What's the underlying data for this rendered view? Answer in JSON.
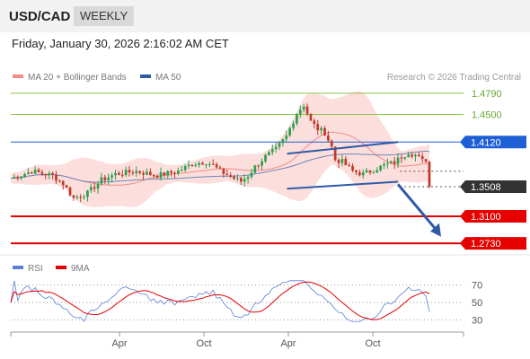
{
  "header": {
    "symbol": "USD/CAD",
    "timeframe": "WEEKLY",
    "datetime": "Friday, January 30, 2026 2:16:02 AM CET"
  },
  "legend": {
    "main": [
      {
        "name": "MA 20 + Bollinger Bands",
        "color": "#f28b82"
      },
      {
        "name": "MA 50",
        "color": "#2f5c9e"
      }
    ],
    "rsi": [
      {
        "name": "RSI",
        "color": "#5b7fd6"
      },
      {
        "name": "9MA",
        "color": "#e60000"
      }
    ],
    "credit": "Research © 2026 Trading Central"
  },
  "chart_data": {
    "type": "candlestick",
    "price_range": [
      1.262,
      1.49
    ],
    "levels": [
      {
        "label": "1.4790",
        "value": 1.479,
        "color": "#8bc34a",
        "style": "resistance"
      },
      {
        "label": "1.4500",
        "value": 1.45,
        "color": "#8bc34a",
        "style": "resistance"
      },
      {
        "label": "1.4120",
        "value": 1.412,
        "color": "#1f5fd6",
        "style": "pivot"
      },
      {
        "label": "1.3508",
        "value": 1.3508,
        "color": "#333333",
        "style": "last"
      },
      {
        "label": "1.3100",
        "value": 1.31,
        "color": "#e60000",
        "style": "support"
      },
      {
        "label": "1.2730",
        "value": 1.273,
        "color": "#e60000",
        "style": "support"
      }
    ],
    "x_ticks": [
      "Apr",
      "Oct",
      "Apr",
      "Oct"
    ],
    "rsi_ticks": [
      70,
      50,
      30
    ],
    "rsi_range": [
      20,
      80
    ],
    "channel": {
      "upper": [
        [
          0.66,
          1.396
        ],
        [
          0.925,
          1.412
        ]
      ],
      "lower": [
        [
          0.66,
          1.348
        ],
        [
          0.925,
          1.3575
        ]
      ]
    },
    "arrow": {
      "from": [
        0.925,
        1.354
      ],
      "to": [
        0.985,
        1.282
      ]
    }
  }
}
